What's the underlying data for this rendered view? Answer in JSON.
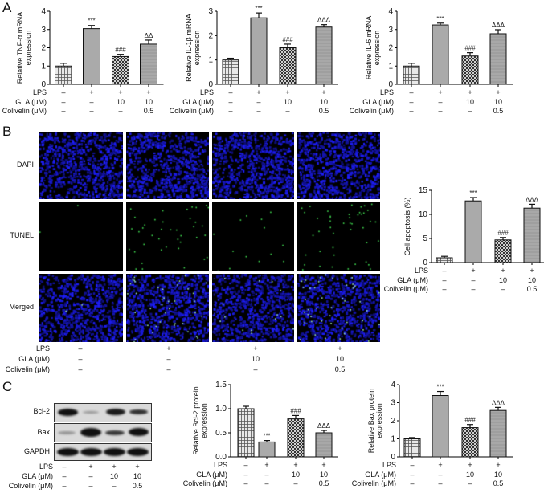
{
  "panels": {
    "A": "A",
    "B": "B",
    "C": "C"
  },
  "conditions": {
    "labels": [
      "LPS",
      "GLA (μM)",
      "Colivelin (μM)"
    ],
    "groups": [
      {
        "LPS": "–",
        "GLA": "–",
        "Colivelin": "–"
      },
      {
        "LPS": "+",
        "GLA": "–",
        "Colivelin": "–"
      },
      {
        "LPS": "+",
        "GLA": "10",
        "Colivelin": "–"
      },
      {
        "LPS": "+",
        "GLA": "10",
        "Colivelin": "0.5"
      }
    ]
  },
  "microscopy": {
    "rows": [
      "DAPI",
      "TUNEL",
      "Merged"
    ]
  },
  "western_blot": {
    "rows": [
      "Bcl-2",
      "Bax",
      "GAPDH"
    ]
  },
  "chart_data": [
    {
      "id": "tnf",
      "panel": "A",
      "type": "bar",
      "title": "",
      "xlabel": "",
      "ylabel": "Relative TNF-α mRNA expression",
      "ylabel_lines": [
        "Relative TNF-α mRNA",
        "expression"
      ],
      "categories": [
        "Control",
        "LPS",
        "LPS+GLA 10",
        "LPS+GLA 10+Colivelin 0.5"
      ],
      "values": [
        1.0,
        3.05,
        1.52,
        2.2
      ],
      "errors": [
        0.15,
        0.17,
        0.12,
        0.22
      ],
      "annotations": [
        "",
        "***",
        "###",
        "ΔΔ"
      ],
      "ylim": [
        0,
        4
      ],
      "yticks": [
        "0",
        "1",
        "2",
        "3",
        "4"
      ],
      "grid": false
    },
    {
      "id": "il1b",
      "panel": "A",
      "type": "bar",
      "title": "",
      "xlabel": "",
      "ylabel": "Relative IL-1β mRNA expression",
      "ylabel_lines": [
        "Relative IL-1β mRNA",
        "expression"
      ],
      "categories": [
        "Control",
        "LPS",
        "LPS+GLA 10",
        "LPS+GLA 10+Colivelin 0.5"
      ],
      "values": [
        1.0,
        2.73,
        1.5,
        2.35
      ],
      "errors": [
        0.07,
        0.2,
        0.15,
        0.1
      ],
      "annotations": [
        "",
        "***",
        "###",
        "ΔΔΔ"
      ],
      "ylim": [
        0,
        3
      ],
      "yticks": [
        "0",
        "1",
        "2",
        "3"
      ],
      "grid": false
    },
    {
      "id": "il6",
      "panel": "A",
      "type": "bar",
      "title": "",
      "xlabel": "",
      "ylabel": "Relative IL-6 mRNA expression",
      "ylabel_lines": [
        "Relative IL-6 mRNA",
        "expression"
      ],
      "categories": [
        "Control",
        "LPS",
        "LPS+GLA 10",
        "LPS+GLA 10+Colivelin 0.5"
      ],
      "values": [
        1.0,
        3.25,
        1.55,
        2.77
      ],
      "errors": [
        0.15,
        0.1,
        0.18,
        0.22
      ],
      "annotations": [
        "",
        "***",
        "###",
        "ΔΔΔ"
      ],
      "ylim": [
        0,
        4
      ],
      "yticks": [
        "0",
        "1",
        "2",
        "3",
        "4"
      ],
      "grid": false
    },
    {
      "id": "apoptosis",
      "panel": "B",
      "type": "bar",
      "title": "",
      "xlabel": "",
      "ylabel": "Cell apoptosis (%)",
      "ylabel_lines": [
        "Cell apoptosis (%)"
      ],
      "categories": [
        "Control",
        "LPS",
        "LPS+GLA 10",
        "LPS+GLA 10+Colivelin 0.5"
      ],
      "values": [
        1.0,
        12.8,
        4.7,
        11.3
      ],
      "errors": [
        0.3,
        0.7,
        0.5,
        0.8
      ],
      "annotations": [
        "",
        "***",
        "###",
        "ΔΔΔ"
      ],
      "ylim": [
        0,
        15
      ],
      "yticks": [
        "0",
        "5",
        "10",
        "15"
      ],
      "grid": false
    },
    {
      "id": "bcl2",
      "panel": "C",
      "type": "bar",
      "title": "",
      "xlabel": "",
      "ylabel": "Relative Bcl-2 protein expression",
      "ylabel_lines": [
        "Relative Bcl-2 protein",
        "expression"
      ],
      "categories": [
        "Control",
        "LPS",
        "LPS+GLA 10",
        "LPS+GLA 10+Colivelin 0.5"
      ],
      "values": [
        1.0,
        0.31,
        0.79,
        0.5
      ],
      "errors": [
        0.05,
        0.03,
        0.07,
        0.05
      ],
      "annotations": [
        "",
        "***",
        "###",
        "ΔΔΔ"
      ],
      "ylim": [
        0,
        1.5
      ],
      "yticks": [
        "0.0",
        "0.5",
        "1.0",
        "1.5"
      ],
      "grid": false
    },
    {
      "id": "bax",
      "panel": "C",
      "type": "bar",
      "title": "",
      "xlabel": "",
      "ylabel": "Relative Bax protein expression",
      "ylabel_lines": [
        "Relative Bax protein",
        "expression"
      ],
      "categories": [
        "Control",
        "LPS",
        "LPS+GLA 10",
        "LPS+GLA 10+Colivelin 0.5"
      ],
      "values": [
        1.0,
        3.4,
        1.62,
        2.57
      ],
      "errors": [
        0.07,
        0.22,
        0.17,
        0.17
      ],
      "annotations": [
        "",
        "***",
        "###",
        "ΔΔΔ"
      ],
      "ylim": [
        0,
        4
      ],
      "yticks": [
        "0",
        "1",
        "2",
        "3",
        "4"
      ],
      "grid": false
    }
  ]
}
